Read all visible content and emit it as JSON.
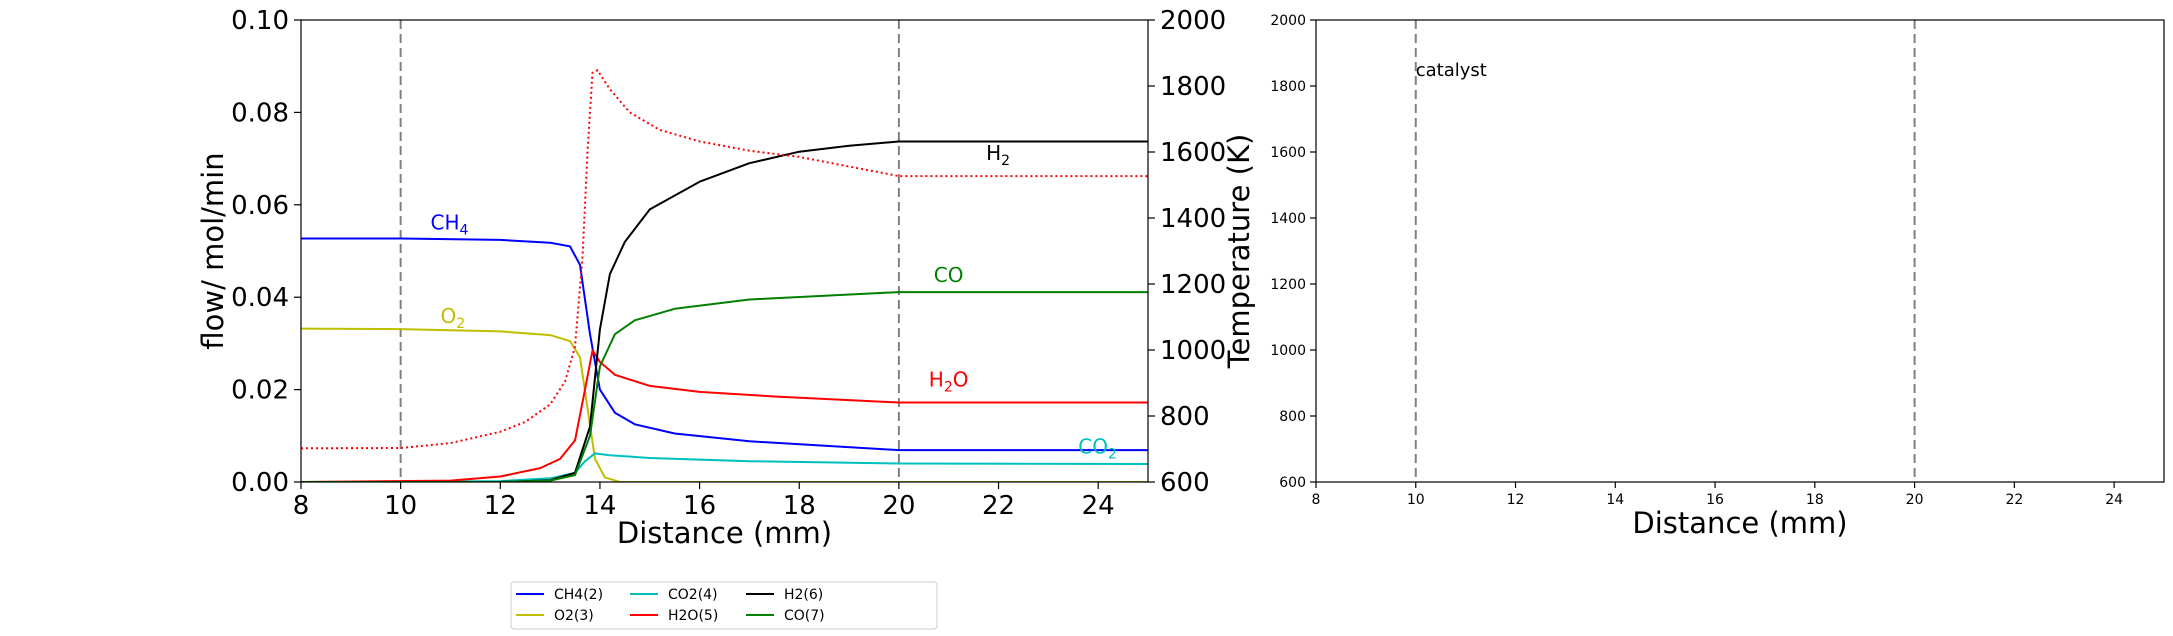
{
  "chart_data": [
    {
      "type": "line",
      "xlabel": "Distance (mm)",
      "ylabel": "flow/ mol/min",
      "y2label": "Temperature (K)",
      "xlim": [
        8,
        25
      ],
      "ylim": [
        0,
        0.1
      ],
      "y2lim": [
        600,
        2000
      ],
      "x_ticks": [
        "8",
        "10",
        "12",
        "14",
        "16",
        "18",
        "20",
        "22",
        "24"
      ],
      "y_ticks": [
        "0.00",
        "0.02",
        "0.04",
        "0.06",
        "0.08",
        "0.10"
      ],
      "y2_ticks": [
        "600",
        "800",
        "1000",
        "1200",
        "1400",
        "1600",
        "1800",
        "2000"
      ],
      "vlines": [
        10,
        20
      ],
      "grid": false,
      "legend": "below",
      "series": [
        {
          "name": "CH4(2)",
          "color": "#0000ff",
          "axis": "left",
          "x": [
            8,
            10,
            12,
            13,
            13.4,
            13.6,
            13.8,
            14,
            14.3,
            14.7,
            15.5,
            17,
            20,
            25
          ],
          "y": [
            0.0527,
            0.0527,
            0.0524,
            0.0518,
            0.051,
            0.047,
            0.032,
            0.02,
            0.015,
            0.0125,
            0.0105,
            0.0088,
            0.0069,
            0.0069
          ]
        },
        {
          "name": "O2(3)",
          "color": "#bfbf00",
          "axis": "left",
          "x": [
            8,
            10,
            12,
            13,
            13.4,
            13.6,
            13.75,
            13.9,
            14.1,
            14.4,
            25
          ],
          "y": [
            0.0332,
            0.0331,
            0.0326,
            0.0318,
            0.0305,
            0.027,
            0.016,
            0.005,
            0.001,
            0.0,
            0.0
          ]
        },
        {
          "name": "CO2(4)",
          "color": "#00bfbf",
          "axis": "left",
          "x": [
            8,
            12,
            13,
            13.5,
            13.7,
            13.9,
            14.2,
            15,
            17,
            20,
            25
          ],
          "y": [
            0.0,
            0.0002,
            0.0008,
            0.002,
            0.0045,
            0.0062,
            0.0058,
            0.0052,
            0.0045,
            0.004,
            0.0039
          ]
        },
        {
          "name": "H2O(5)",
          "color": "#ff0000",
          "axis": "left",
          "x": [
            8,
            11,
            12,
            12.8,
            13.2,
            13.5,
            13.7,
            13.85,
            14,
            14.3,
            15,
            16,
            17.5,
            20,
            25
          ],
          "y": [
            0.0,
            0.0003,
            0.0012,
            0.003,
            0.005,
            0.009,
            0.02,
            0.0285,
            0.026,
            0.0232,
            0.0208,
            0.0195,
            0.0185,
            0.0172,
            0.0172
          ]
        },
        {
          "name": "H2(6)",
          "color": "#000000",
          "axis": "left",
          "x": [
            8,
            12,
            13,
            13.5,
            13.8,
            14,
            14.2,
            14.5,
            15,
            16,
            17,
            18,
            19,
            20,
            25
          ],
          "y": [
            0.0,
            0.0,
            0.0004,
            0.002,
            0.012,
            0.033,
            0.045,
            0.052,
            0.059,
            0.065,
            0.069,
            0.0715,
            0.0728,
            0.0737,
            0.0737
          ]
        },
        {
          "name": "CO(7)",
          "color": "#008000",
          "axis": "left",
          "x": [
            8,
            12,
            13,
            13.5,
            13.8,
            14,
            14.3,
            14.7,
            15.5,
            17,
            20,
            25
          ],
          "y": [
            0.0,
            0.0,
            0.0003,
            0.0015,
            0.01,
            0.025,
            0.032,
            0.035,
            0.0375,
            0.0395,
            0.0411,
            0.0411
          ]
        },
        {
          "name": "",
          "color": "#ff0000",
          "dash": true,
          "axis": "right",
          "x": [
            8,
            10,
            11,
            12,
            12.5,
            13,
            13.3,
            13.5,
            13.65,
            13.75,
            13.85,
            13.95,
            14.2,
            14.6,
            15.2,
            16,
            17,
            18,
            20,
            25
          ],
          "y": [
            702,
            703,
            718,
            752,
            782,
            835,
            905,
            1010,
            1280,
            1600,
            1840,
            1848,
            1790,
            1720,
            1667,
            1632,
            1604,
            1585,
            1527,
            1527
          ]
        }
      ],
      "annotations": [
        {
          "label": "CH",
          "sub": "4",
          "x": 10.6,
          "y": 0.0547,
          "color": "#0000ff"
        },
        {
          "label": "O",
          "sub": "2",
          "x": 10.8,
          "y": 0.0344,
          "color": "#bfbf00"
        },
        {
          "label": "H",
          "sub": "2",
          "x": 21.75,
          "y": 0.0697,
          "color": "#000000"
        },
        {
          "label": "CO",
          "sub": "",
          "x": 20.7,
          "y": 0.0433,
          "color": "#008000"
        },
        {
          "label": "H",
          "sub": "2",
          "tail": "O",
          "x": 20.6,
          "y": 0.0207,
          "color": "#ff0000"
        },
        {
          "label": "CO",
          "sub": "2",
          "x": 23.6,
          "y": 0.0062,
          "color": "#00bfbf"
        }
      ]
    },
    {
      "type": "line",
      "xlabel": "Distance (mm)",
      "xlim": [
        8,
        25
      ],
      "ylim": [
        600,
        2000
      ],
      "x_ticks": [
        "8",
        "10",
        "12",
        "14",
        "16",
        "18",
        "20",
        "22",
        "24"
      ],
      "y_ticks": [
        "600",
        "800",
        "1000",
        "1200",
        "1400",
        "1600",
        "1800",
        "2000"
      ],
      "vlines": [
        10,
        20
      ],
      "text": {
        "label": "catalyst",
        "x": 10.0,
        "y": 1830
      },
      "series": []
    }
  ]
}
